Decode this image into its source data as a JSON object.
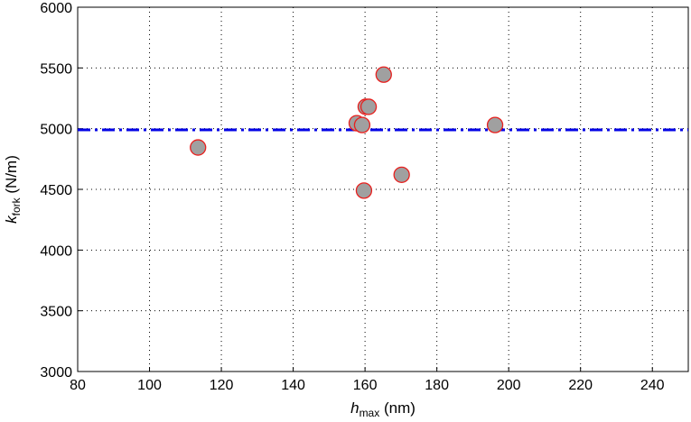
{
  "chart_data": {
    "type": "scatter",
    "title": "",
    "xlabel": {
      "symbol": "h",
      "subscript": "max",
      "unit": " (nm)"
    },
    "ylabel": {
      "symbol": "k",
      "subscript": "fork",
      "unit": " (N/m)"
    },
    "xlim": [
      80,
      250
    ],
    "ylim": [
      3000,
      6000
    ],
    "xticks": [
      80,
      100,
      120,
      140,
      160,
      180,
      200,
      220,
      240
    ],
    "yticks": [
      3000,
      3500,
      4000,
      4500,
      5000,
      5500,
      6000
    ],
    "grid": true,
    "points": [
      {
        "x": 113.5,
        "y": 4845
      },
      {
        "x": 157.7,
        "y": 5045
      },
      {
        "x": 159.2,
        "y": 5030
      },
      {
        "x": 160.2,
        "y": 5180
      },
      {
        "x": 161.0,
        "y": 5180
      },
      {
        "x": 159.7,
        "y": 4490
      },
      {
        "x": 165.2,
        "y": 5445
      },
      {
        "x": 170.2,
        "y": 4620
      },
      {
        "x": 196.2,
        "y": 5030
      }
    ],
    "reference_line": {
      "y": 4990,
      "style": "dash-dot"
    },
    "colors": {
      "marker_fill": "#a0a0a0",
      "marker_edge": "#e8201e",
      "reference_line": "#0000e6",
      "grid": "#000000"
    }
  }
}
